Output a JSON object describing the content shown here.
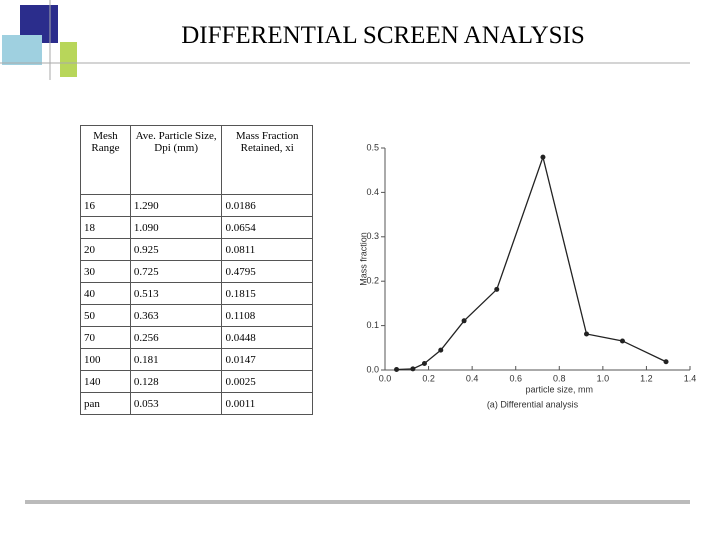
{
  "title": "DIFFERENTIAL SCREEN ANALYSIS",
  "table": {
    "header": [
      "Mesh Range",
      "Ave. Particle Size, Dpi (mm)",
      "Mass Fraction Retained, xi"
    ],
    "rows": [
      [
        "16",
        "1.290",
        "0.0186"
      ],
      [
        "18",
        "1.090",
        "0.0654"
      ],
      [
        "20",
        "0.925",
        "0.0811"
      ],
      [
        "30",
        "0.725",
        "0.4795"
      ],
      [
        "40",
        "0.513",
        "0.1815"
      ],
      [
        "50",
        "0.363",
        "0.1108"
      ],
      [
        "70",
        "0.256",
        "0.0448"
      ],
      [
        "100",
        "0.181",
        "0.0147"
      ],
      [
        "140",
        "0.128",
        "0.0025"
      ],
      [
        "pan",
        "0.053",
        "0.0011"
      ]
    ]
  },
  "chart_data": {
    "type": "line",
    "x": [
      0.053,
      0.128,
      0.181,
      0.256,
      0.363,
      0.513,
      0.725,
      0.925,
      1.09,
      1.29
    ],
    "values": [
      0.0011,
      0.0025,
      0.0147,
      0.0448,
      0.1108,
      0.1815,
      0.4795,
      0.0811,
      0.0654,
      0.0186
    ],
    "color": "#222222",
    "xlim": [
      0,
      1.4
    ],
    "xticks": [
      {
        "value": 0,
        "label": "0.0"
      },
      0.2,
      0.4,
      0.6,
      0.8,
      {
        "value": 1,
        "label": "1.0"
      },
      1.2,
      1.4
    ],
    "ylim": [
      0,
      0.5
    ],
    "yticks": [
      {
        "value": 0,
        "label": "0.0"
      },
      0.1,
      0.2,
      0.3,
      0.4,
      0.5
    ],
    "x_label": "particle size, mm",
    "y_label": "Mass fraction",
    "caption": "(a) Differential analysis",
    "grid": false
  }
}
